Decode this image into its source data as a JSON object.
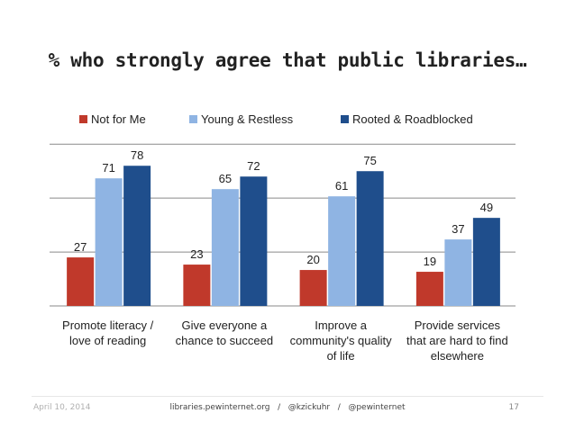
{
  "slide": {
    "title": "% who strongly agree that public libraries…",
    "footer_date": "April 10, 2014",
    "footer_center": "libraries.pewinternet.org   /   @kzickuhr   /   @pewinternet",
    "page_number": "17"
  },
  "chart_data": {
    "type": "bar",
    "title": "% who strongly agree that public libraries…",
    "categories": [
      [
        "Promote literacy /",
        "love of reading"
      ],
      [
        "Give everyone a",
        "chance to succeed"
      ],
      [
        "Improve a",
        "community's quality",
        "of life"
      ],
      [
        "Provide services",
        "that are hard to find",
        "elsewhere"
      ]
    ],
    "series": [
      {
        "name": "Not for Me",
        "color": "#c0392b",
        "values": [
          27,
          23,
          20,
          19
        ]
      },
      {
        "name": "Young & Restless",
        "color": "#8fb4e3",
        "values": [
          71,
          65,
          61,
          37
        ]
      },
      {
        "name": "Rooted & Roadblocked",
        "color": "#1f4e8c",
        "values": [
          78,
          72,
          75,
          49
        ]
      }
    ],
    "ylim": [
      0,
      90
    ],
    "gridlines": true,
    "legend_position": "top",
    "data_labels": true
  }
}
